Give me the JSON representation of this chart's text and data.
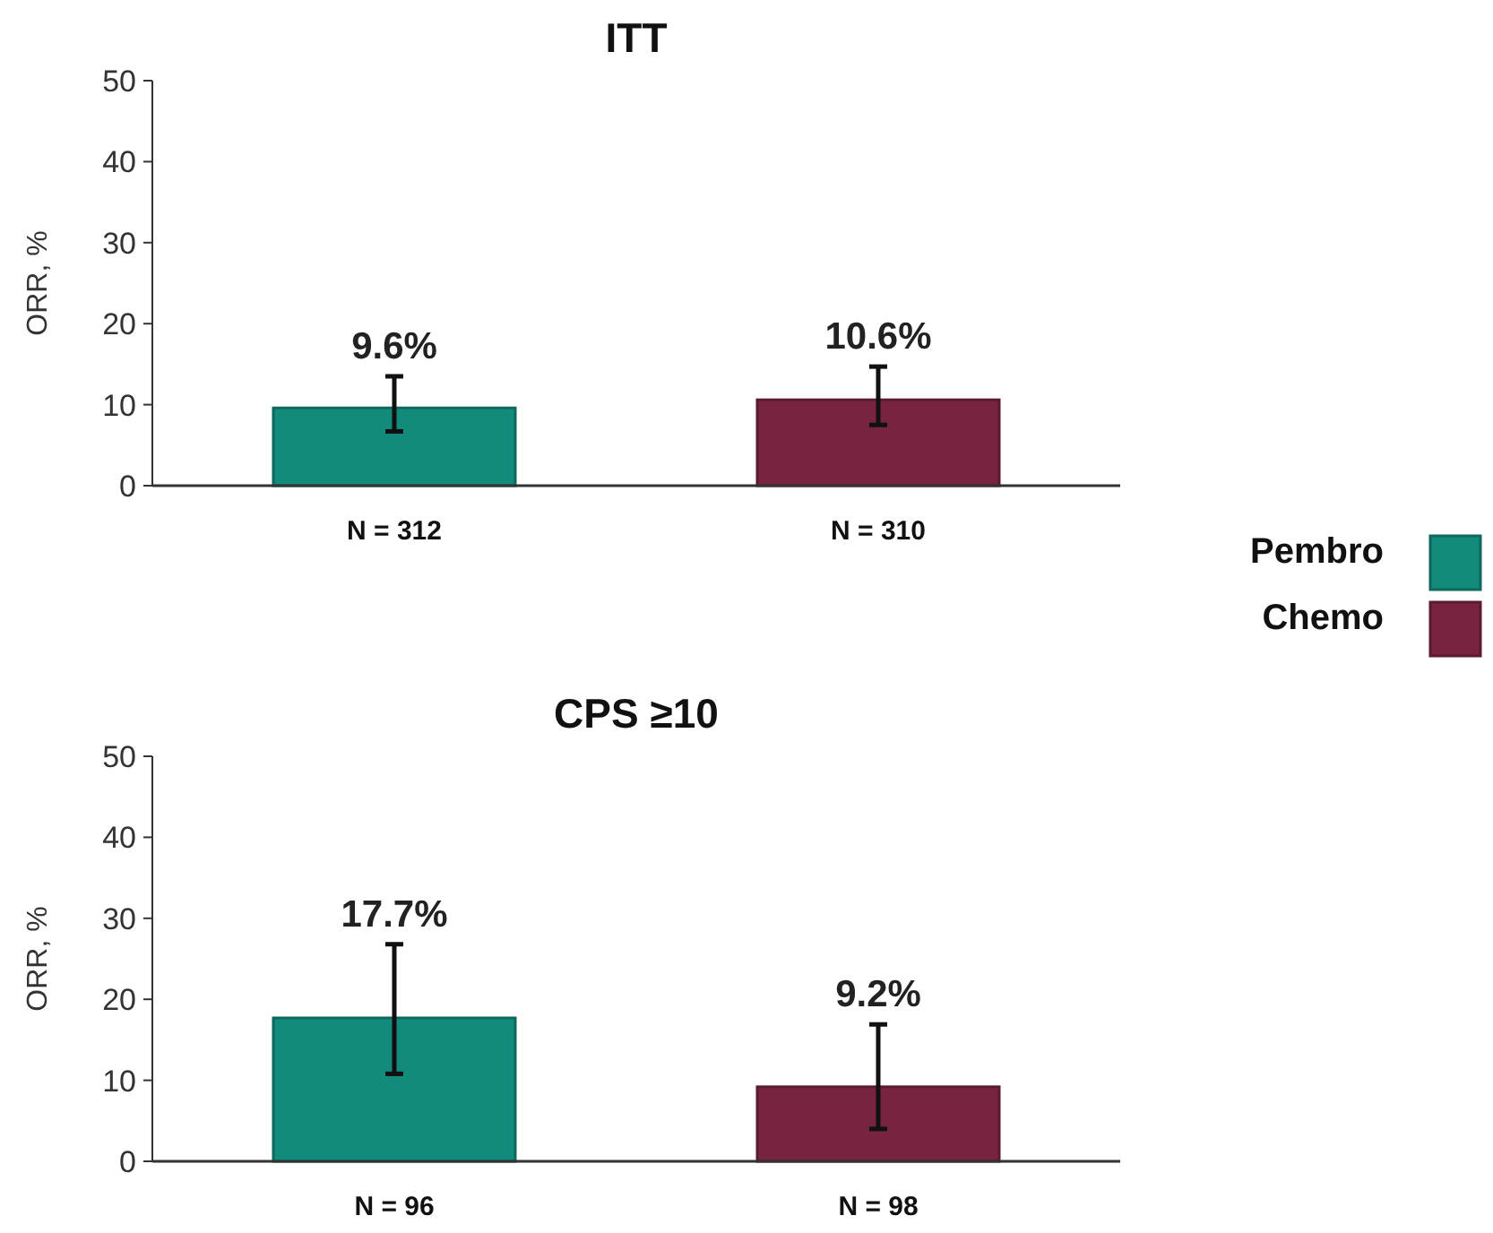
{
  "chart_data": [
    {
      "type": "bar",
      "title": "ITT",
      "ylabel": "ORR, %",
      "categories": [
        "N = 312",
        "N = 310"
      ],
      "stacked": true,
      "ylim": [
        0,
        50
      ],
      "yticks": [
        0,
        10,
        20,
        30,
        40,
        50
      ],
      "legend": "bottom right",
      "series": [
        {
          "name": "Pembro",
          "color": "#128a7c",
          "values": [
            9.6,
            null
          ],
          "errors": [
            [
              6.7,
              13.5
            ],
            null
          ],
          "value_labels": [
            "9.6%",
            null
          ]
        },
        {
          "name": "Chemo",
          "color": "#782440",
          "values": [
            null,
            10.6
          ],
          "errors": [
            null,
            [
              7.5,
              14.7
            ]
          ],
          "value_labels": [
            null,
            "10.6%"
          ]
        }
      ]
    },
    {
      "type": "bar",
      "title": "CPS ≥10",
      "ylabel": "ORR, %",
      "categories": [
        "N = 96",
        "N = 98"
      ],
      "stacked": true,
      "ylim": [
        0,
        50
      ],
      "yticks": [
        0,
        10,
        20,
        30,
        40,
        50
      ],
      "series": [
        {
          "color": "#128a7c",
          "values": [
            17.7,
            null
          ],
          "errors": [
            [
              10.8,
              26.8
            ],
            null
          ],
          "value_labels": [
            "17.7%",
            null
          ]
        },
        {
          "color": "#782440",
          "values": [
            null,
            9.2
          ],
          "errors": [
            null,
            [
              4.0,
              16.9
            ]
          ],
          "value_labels": [
            null,
            "9.2%"
          ]
        }
      ]
    }
  ]
}
